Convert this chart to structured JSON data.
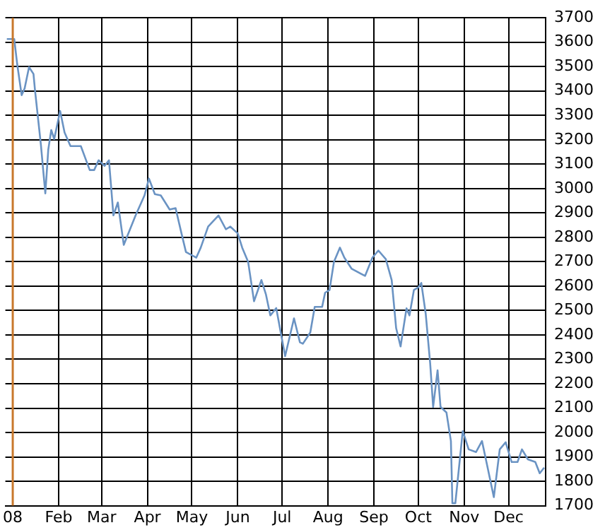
{
  "chart_data": {
    "type": "line",
    "x": [
      "2007-12-28",
      "2008-01-02",
      "2008-01-04",
      "2008-01-07",
      "2008-01-09",
      "2008-01-12",
      "2008-01-15",
      "2008-01-16",
      "2008-01-20",
      "2008-01-23",
      "2008-01-25",
      "2008-01-27",
      "2008-01-29",
      "2008-02-02",
      "2008-02-05",
      "2008-02-09",
      "2008-02-16",
      "2008-02-22",
      "2008-02-25",
      "2008-02-28",
      "2008-03-03",
      "2008-03-06",
      "2008-03-09",
      "2008-03-12",
      "2008-03-16",
      "2008-03-24",
      "2008-03-30",
      "2008-04-02",
      "2008-04-06",
      "2008-04-10",
      "2008-04-16",
      "2008-04-20",
      "2008-04-24",
      "2008-04-27",
      "2008-05-04",
      "2008-05-07",
      "2008-05-12",
      "2008-05-19",
      "2008-05-24",
      "2008-05-27",
      "2008-06-01",
      "2008-06-04",
      "2008-06-08",
      "2008-06-12",
      "2008-06-17",
      "2008-06-20",
      "2008-06-23",
      "2008-06-27",
      "2008-07-03",
      "2008-07-09",
      "2008-07-13",
      "2008-07-15",
      "2008-07-20",
      "2008-07-23",
      "2008-07-28",
      "2008-07-30",
      "2008-08-02",
      "2008-08-05",
      "2008-08-09",
      "2008-08-12",
      "2008-08-17",
      "2008-08-26",
      "2008-08-31",
      "2008-09-04",
      "2008-09-09",
      "2008-09-13",
      "2008-09-16",
      "2008-09-19",
      "2008-09-23",
      "2008-09-25",
      "2008-09-28",
      "2008-10-01",
      "2008-10-03",
      "2008-10-06",
      "2008-10-09",
      "2008-10-11",
      "2008-10-14",
      "2008-10-16",
      "2008-10-20",
      "2008-10-23",
      "2008-10-24",
      "2008-10-26",
      "2008-10-31",
      "2008-11-04",
      "2008-11-09",
      "2008-11-13",
      "2008-11-16",
      "2008-11-21",
      "2008-11-25",
      "2008-11-29",
      "2008-12-03",
      "2008-12-07",
      "2008-12-10",
      "2008-12-14",
      "2008-12-19",
      "2008-12-22",
      "2008-12-25"
    ],
    "values": [
      3613,
      3613,
      3510,
      3383,
      3410,
      3498,
      3470,
      3405,
      3180,
      2980,
      3160,
      3240,
      3203,
      3318,
      3230,
      3174,
      3174,
      3076,
      3076,
      3116,
      3093,
      3116,
      2890,
      2943,
      2769,
      2890,
      2972,
      3041,
      2977,
      2972,
      2914,
      2920,
      2816,
      2740,
      2717,
      2758,
      2844,
      2890,
      2833,
      2844,
      2816,
      2758,
      2700,
      2538,
      2625,
      2567,
      2480,
      2510,
      2313,
      2468,
      2370,
      2364,
      2410,
      2515,
      2515,
      2573,
      2584,
      2700,
      2758,
      2717,
      2671,
      2642,
      2717,
      2746,
      2711,
      2625,
      2428,
      2353,
      2509,
      2480,
      2584,
      2595,
      2613,
      2486,
      2283,
      2105,
      2255,
      2105,
      2082,
      1965,
      1710,
      1710,
      2006,
      1931,
      1920,
      1965,
      1879,
      1735,
      1931,
      1960,
      1879,
      1879,
      1931,
      1890,
      1879,
      1833,
      1856
    ],
    "color": "#6a93c3",
    "xlim": [
      "2007-12-27",
      "2008-12-26"
    ],
    "xticks": [
      {
        "value": "2008-01-01",
        "label": "08"
      },
      {
        "value": "2008-02-01",
        "label": "Feb"
      },
      {
        "value": "2008-03-01",
        "label": "Mar"
      },
      {
        "value": "2008-04-01",
        "label": "Apr"
      },
      {
        "value": "2008-05-01",
        "label": "May"
      },
      {
        "value": "2008-06-01",
        "label": "Jun"
      },
      {
        "value": "2008-07-01",
        "label": "Jul"
      },
      {
        "value": "2008-08-01",
        "label": "Aug"
      },
      {
        "value": "2008-09-01",
        "label": "Sep"
      },
      {
        "value": "2008-10-01",
        "label": "Oct"
      },
      {
        "value": "2008-11-01",
        "label": "Nov"
      },
      {
        "value": "2008-12-01",
        "label": "Dec"
      }
    ],
    "ylim": [
      1700,
      3700
    ],
    "yticks": [
      1700,
      1800,
      1900,
      2000,
      2100,
      2200,
      2300,
      2400,
      2500,
      2600,
      2700,
      2800,
      2900,
      3000,
      3100,
      3200,
      3300,
      3400,
      3500,
      3600,
      3700
    ],
    "ref_lines": [
      {
        "axis": "x",
        "value": "2008-01-01",
        "color": "#c8782c"
      }
    ],
    "grid": true
  }
}
